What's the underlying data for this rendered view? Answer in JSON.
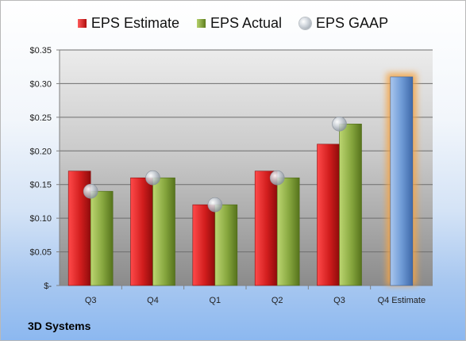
{
  "chart_data": {
    "type": "bar",
    "categories": [
      "Q3",
      "Q4",
      "Q1",
      "Q2",
      "Q3",
      "Q4 Estimate"
    ],
    "series": [
      {
        "name": "EPS Estimate",
        "values": [
          0.17,
          0.16,
          0.12,
          0.17,
          0.21,
          null
        ]
      },
      {
        "name": "EPS Actual",
        "values": [
          0.14,
          0.16,
          0.12,
          0.16,
          0.24,
          null
        ]
      },
      {
        "name": "EPS GAAP",
        "values": [
          0.14,
          0.16,
          0.12,
          0.16,
          0.24,
          null
        ]
      }
    ],
    "forecast": {
      "category": "Q4 Estimate",
      "value": 0.31
    },
    "yticks": [
      "$-",
      "$0.05",
      "$0.10",
      "$0.15",
      "$0.20",
      "$0.25",
      "$0.30",
      "$0.35"
    ],
    "ylim": [
      0,
      0.35
    ],
    "grid": true,
    "legend_position": "top-center",
    "colors": {
      "estimate": "#c41f1f",
      "actual": "#7e9e38",
      "gaap": "#a9b1ba",
      "forecast": "#6f9bd6",
      "forecast_glow": "#f5a445"
    }
  },
  "company": "3D Systems"
}
